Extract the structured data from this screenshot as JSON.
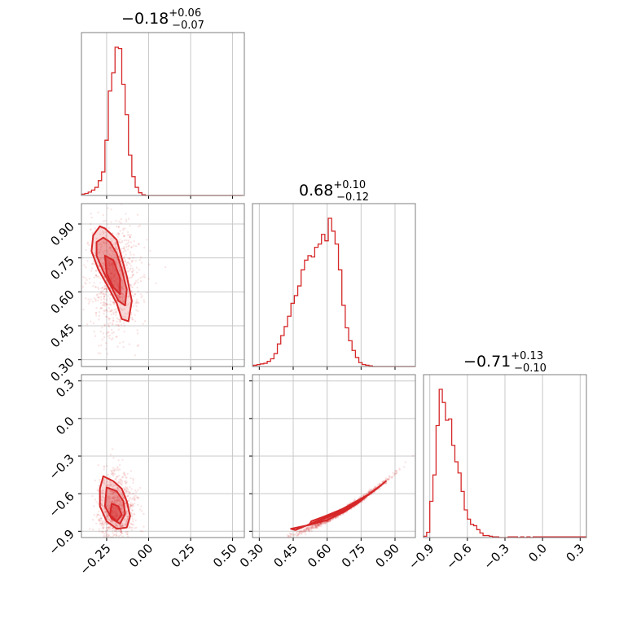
{
  "chart_data": [
    {
      "type": "histogram",
      "panel": "p00",
      "title": {
        "value": "−0.18",
        "plus": "+0.06",
        "minus": "−0.07"
      },
      "xlim": [
        -0.4,
        0.57
      ],
      "x_ticks": [
        -0.25,
        0.0,
        0.25,
        0.5
      ],
      "edges_start": -0.4,
      "bin_width": 0.02,
      "counts": [
        2,
        3,
        5,
        8,
        12,
        22,
        35,
        82,
        155,
        182,
        220,
        218,
        165,
        120,
        60,
        28,
        12,
        4,
        1,
        0,
        0,
        0,
        0,
        0,
        0,
        0,
        0,
        0,
        0,
        0,
        0,
        0,
        0,
        0,
        0,
        0,
        0,
        0,
        0,
        0,
        0,
        0,
        0,
        0,
        0,
        0,
        0,
        0
      ],
      "color": "#d62728"
    },
    {
      "type": "scatter-contour",
      "panel": "p10",
      "xlim": [
        -0.4,
        0.57
      ],
      "ylim": [
        0.27,
        0.99
      ],
      "x_ticks": [
        -0.25,
        0.0,
        0.25,
        0.5
      ],
      "y_ticks": [
        0.3,
        0.45,
        0.6,
        0.75,
        0.9
      ],
      "y_tick_labels": [
        "0.30",
        "0.45",
        "0.60",
        "0.75",
        "0.90"
      ],
      "contour_levels": [
        [
          [
            -0.33,
            0.85
          ],
          [
            -0.29,
            0.89
          ],
          [
            -0.26,
            0.88
          ],
          [
            -0.23,
            0.86
          ],
          [
            -0.19,
            0.83
          ],
          [
            -0.16,
            0.75
          ],
          [
            -0.13,
            0.67
          ],
          [
            -0.1,
            0.56
          ],
          [
            -0.12,
            0.47
          ],
          [
            -0.16,
            0.48
          ],
          [
            -0.19,
            0.55
          ],
          [
            -0.24,
            0.62
          ],
          [
            -0.3,
            0.7
          ],
          [
            -0.34,
            0.78
          ]
        ],
        [
          [
            -0.31,
            0.82
          ],
          [
            -0.27,
            0.84
          ],
          [
            -0.23,
            0.82
          ],
          [
            -0.19,
            0.77
          ],
          [
            -0.16,
            0.7
          ],
          [
            -0.13,
            0.61
          ],
          [
            -0.14,
            0.54
          ],
          [
            -0.18,
            0.56
          ],
          [
            -0.22,
            0.62
          ],
          [
            -0.27,
            0.69
          ],
          [
            -0.31,
            0.76
          ]
        ],
        [
          [
            -0.26,
            0.76
          ],
          [
            -0.21,
            0.74
          ],
          [
            -0.17,
            0.66
          ],
          [
            -0.17,
            0.59
          ],
          [
            -0.21,
            0.62
          ],
          [
            -0.25,
            0.68
          ]
        ]
      ],
      "scatter_center": [
        -0.2,
        0.66
      ],
      "color": "#d62728"
    },
    {
      "type": "histogram",
      "panel": "p11",
      "title": {
        "value": "0.68",
        "plus": "+0.10",
        "minus": "−0.12"
      },
      "xlim": [
        0.27,
        0.99
      ],
      "x_ticks": [
        0.3,
        0.45,
        0.6,
        0.75,
        0.9
      ],
      "edges_start": 0.275,
      "bin_width": 0.015,
      "counts": [
        2,
        3,
        4,
        5,
        8,
        12,
        20,
        35,
        48,
        62,
        78,
        98,
        110,
        125,
        150,
        165,
        172,
        170,
        185,
        190,
        205,
        195,
        230,
        210,
        190,
        150,
        95,
        60,
        40,
        25,
        14,
        6,
        3,
        2,
        1,
        0,
        0,
        0,
        0,
        0,
        0,
        0,
        0,
        0,
        0,
        0,
        0,
        0
      ],
      "color": "#d62728"
    },
    {
      "type": "scatter-contour",
      "panel": "p20",
      "xlim": [
        -0.4,
        0.57
      ],
      "ylim": [
        -0.95,
        0.35
      ],
      "x_ticks": [
        -0.25,
        0.0,
        0.25,
        0.5
      ],
      "x_tick_labels": [
        "−0.25",
        "0.00",
        "0.25",
        "0.50"
      ],
      "y_ticks": [
        -0.9,
        -0.6,
        -0.3,
        0.0,
        0.3
      ],
      "y_tick_labels": [
        "−0.9",
        "−0.6",
        "−0.3",
        "0.0",
        "0.3"
      ],
      "contour_levels": [
        [
          [
            -0.27,
            -0.46
          ],
          [
            -0.21,
            -0.5
          ],
          [
            -0.16,
            -0.56
          ],
          [
            -0.13,
            -0.66
          ],
          [
            -0.11,
            -0.78
          ],
          [
            -0.13,
            -0.87
          ],
          [
            -0.19,
            -0.88
          ],
          [
            -0.25,
            -0.82
          ],
          [
            -0.29,
            -0.7
          ],
          [
            -0.29,
            -0.56
          ]
        ],
        [
          [
            -0.25,
            -0.55
          ],
          [
            -0.19,
            -0.58
          ],
          [
            -0.15,
            -0.66
          ],
          [
            -0.14,
            -0.76
          ],
          [
            -0.17,
            -0.84
          ],
          [
            -0.22,
            -0.8
          ],
          [
            -0.26,
            -0.7
          ]
        ],
        [
          [
            -0.22,
            -0.68
          ],
          [
            -0.18,
            -0.7
          ],
          [
            -0.16,
            -0.77
          ],
          [
            -0.19,
            -0.82
          ],
          [
            -0.23,
            -0.77
          ]
        ]
      ],
      "scatter_center": [
        -0.19,
        -0.72
      ],
      "color": "#d62728"
    },
    {
      "type": "scatter-contour",
      "panel": "p21",
      "xlim": [
        0.27,
        0.99
      ],
      "ylim": [
        -0.95,
        0.35
      ],
      "x_ticks": [
        0.3,
        0.45,
        0.6,
        0.75,
        0.9
      ],
      "x_tick_labels": [
        "0.30",
        "0.45",
        "0.60",
        "0.75",
        "0.90"
      ],
      "y_ticks": [
        -0.9,
        -0.6,
        -0.3,
        0.0,
        0.3
      ],
      "contour_levels": [
        [
          [
            0.44,
            -0.88
          ],
          [
            0.52,
            -0.85
          ],
          [
            0.6,
            -0.79
          ],
          [
            0.68,
            -0.72
          ],
          [
            0.75,
            -0.65
          ],
          [
            0.82,
            -0.56
          ],
          [
            0.86,
            -0.5
          ],
          [
            0.84,
            -0.53
          ],
          [
            0.78,
            -0.61
          ],
          [
            0.71,
            -0.68
          ],
          [
            0.63,
            -0.76
          ],
          [
            0.54,
            -0.83
          ],
          [
            0.46,
            -0.89
          ]
        ],
        [
          [
            0.52,
            -0.85
          ],
          [
            0.6,
            -0.81
          ],
          [
            0.68,
            -0.74
          ],
          [
            0.74,
            -0.67
          ],
          [
            0.78,
            -0.61
          ],
          [
            0.74,
            -0.65
          ],
          [
            0.67,
            -0.72
          ],
          [
            0.59,
            -0.78
          ],
          [
            0.53,
            -0.82
          ]
        ],
        [
          [
            0.6,
            -0.79
          ],
          [
            0.67,
            -0.74
          ],
          [
            0.72,
            -0.68
          ],
          [
            0.68,
            -0.71
          ],
          [
            0.62,
            -0.77
          ]
        ]
      ],
      "scatter_center": [
        0.66,
        -0.75
      ],
      "color": "#d62728"
    },
    {
      "type": "histogram",
      "panel": "p22",
      "title": {
        "value": "−0.71",
        "plus": "+0.13",
        "minus": "−0.10"
      },
      "xlim": [
        -0.95,
        0.35
      ],
      "x_ticks": [
        -0.9,
        -0.6,
        -0.3,
        0.0,
        0.3
      ],
      "x_tick_labels": [
        "−0.9",
        "−0.6",
        "−0.3",
        "0.0",
        "0.3"
      ],
      "edges_start": -0.95,
      "bin_width": 0.025,
      "counts": [
        2,
        8,
        55,
        95,
        170,
        225,
        205,
        178,
        180,
        140,
        115,
        98,
        70,
        42,
        28,
        20,
        18,
        12,
        7,
        3,
        3,
        2,
        1,
        1,
        0,
        0,
        0,
        1,
        1,
        1,
        0,
        1,
        0,
        1,
        0,
        1,
        1,
        1,
        1,
        1,
        1,
        1,
        1,
        1,
        1,
        1,
        1,
        1,
        1,
        1,
        1,
        1
      ],
      "color": "#d62728"
    }
  ]
}
